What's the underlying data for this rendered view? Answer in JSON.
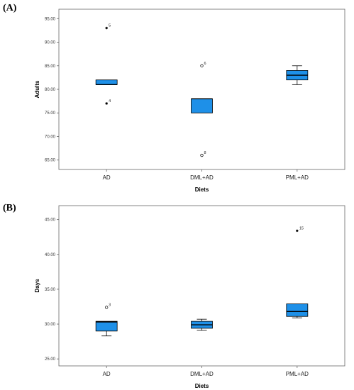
{
  "chart_data": [
    {
      "type": "boxplot",
      "panel_label": "(A)",
      "xlabel": "Diets",
      "ylabel": "Adults",
      "categories": [
        "AD",
        "DML+AD",
        "PML+AD"
      ],
      "ylim": [
        63.0,
        97.0
      ],
      "yticks": [
        "65.00",
        "70.00",
        "75.00",
        "80.00",
        "85.00",
        "90.00",
        "95.00"
      ],
      "yticks_values": [
        65,
        70,
        75,
        80,
        85,
        90,
        95
      ],
      "grid": false,
      "boxes": [
        {
          "category": "AD",
          "q1": 81.0,
          "median": 81.0,
          "q3": 82.0,
          "whisker_low": 81.0,
          "whisker_high": 82.0
        },
        {
          "category": "DML+AD",
          "q1": 75.0,
          "median": 78.0,
          "q3": 78.0,
          "whisker_low": 75.0,
          "whisker_high": 78.0
        },
        {
          "category": "PML+AD",
          "q1": 82.0,
          "median": 83.0,
          "q3": 84.0,
          "whisker_low": 81.0,
          "whisker_high": 85.0
        }
      ],
      "outliers": [
        {
          "category": "AD",
          "value": 93.0,
          "label": "5",
          "marker": "star"
        },
        {
          "category": "AD",
          "value": 77.0,
          "label": "4",
          "marker": "star"
        },
        {
          "category": "DML+AD",
          "value": 85.0,
          "label": "6",
          "marker": "circle"
        },
        {
          "category": "DML+AD",
          "value": 66.0,
          "label": "8",
          "marker": "circle"
        }
      ],
      "box_color": "#1e90e8"
    },
    {
      "type": "boxplot",
      "panel_label": "(B)",
      "xlabel": "Diets",
      "ylabel": "Days",
      "categories": [
        "AD",
        "DML+AD",
        "PML+AD"
      ],
      "ylim": [
        24.0,
        47.0
      ],
      "yticks": [
        "25.00",
        "30.00",
        "35.00",
        "40.00",
        "45.00"
      ],
      "yticks_values": [
        25,
        30,
        35,
        40,
        45
      ],
      "grid": false,
      "boxes": [
        {
          "category": "AD",
          "q1": 29.0,
          "median": 30.3,
          "q3": 30.4,
          "whisker_low": 28.3,
          "whisker_high": 30.4
        },
        {
          "category": "DML+AD",
          "q1": 29.4,
          "median": 29.9,
          "q3": 30.4,
          "whisker_low": 29.1,
          "whisker_high": 30.7
        },
        {
          "category": "PML+AD",
          "q1": 31.1,
          "median": 31.8,
          "q3": 32.9,
          "whisker_low": 30.9,
          "whisker_high": 32.9
        }
      ],
      "outliers": [
        {
          "category": "AD",
          "value": 32.4,
          "label": "3",
          "marker": "circle"
        },
        {
          "category": "PML+AD",
          "value": 43.4,
          "label": "15",
          "marker": "star"
        }
      ],
      "box_color": "#1e90e8"
    }
  ]
}
